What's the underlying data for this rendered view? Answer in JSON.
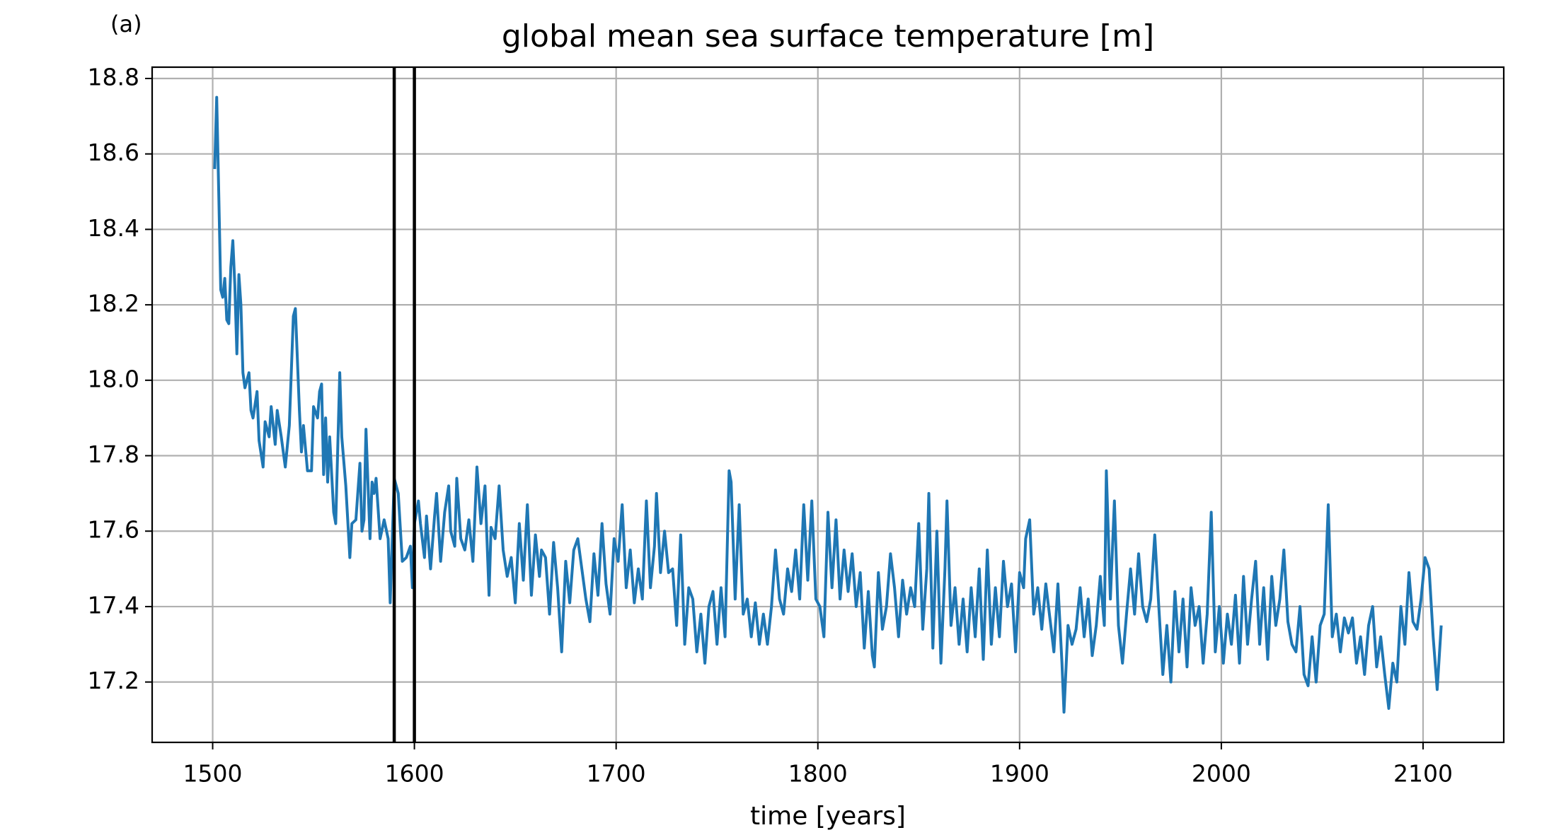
{
  "chart_data": {
    "type": "line",
    "title": "global mean sea surface temperature [m]",
    "panel_label": "(a)",
    "xlabel": "time [years]",
    "xlim": [
      1470,
      2140
    ],
    "ylim": [
      17.04,
      18.83
    ],
    "xticks": [
      1500,
      1600,
      1700,
      1800,
      1900,
      2000,
      2100
    ],
    "yticks": [
      {
        "value": 17.2,
        "label": "17.2"
      },
      {
        "value": 17.4,
        "label": "17.4"
      },
      {
        "value": 17.6,
        "label": "17.6"
      },
      {
        "value": 17.8,
        "label": "17.8"
      },
      {
        "value": 18.0,
        "label": "18.0"
      },
      {
        "value": 18.2,
        "label": "18.2"
      },
      {
        "value": 18.4,
        "label": "18.4"
      },
      {
        "value": 18.6,
        "label": "18.6"
      },
      {
        "value": 18.8,
        "label": "18.8"
      }
    ],
    "grid": true,
    "vlines": [
      1590,
      1600
    ],
    "vline_color": "#000000",
    "x": [
      1501,
      1502,
      1503,
      1504,
      1505,
      1506,
      1507,
      1508,
      1509,
      1510,
      1511,
      1512,
      1513,
      1514,
      1515,
      1516,
      1518,
      1519,
      1520,
      1522,
      1523,
      1525,
      1526,
      1528,
      1529,
      1531,
      1532,
      1534,
      1536,
      1538,
      1540,
      1541,
      1543,
      1544,
      1545,
      1547,
      1549,
      1550,
      1552,
      1553,
      1554,
      1555,
      1556,
      1557,
      1558,
      1560,
      1561,
      1563,
      1564,
      1566,
      1568,
      1569,
      1571,
      1573,
      1574,
      1575,
      1576,
      1578,
      1579,
      1580,
      1581,
      1583,
      1585,
      1587,
      1588,
      1590,
      1592,
      1594,
      1596,
      1598,
      1599,
      1600,
      1602,
      1603,
      1605,
      1606,
      1608,
      1610,
      1611,
      1613,
      1615,
      1617,
      1618,
      1620,
      1621,
      1623,
      1625,
      1627,
      1629,
      1631,
      1633,
      1635,
      1637,
      1638,
      1640,
      1642,
      1644,
      1646,
      1648,
      1650,
      1652,
      1654,
      1656,
      1658,
      1660,
      1662,
      1663,
      1665,
      1667,
      1669,
      1671,
      1673,
      1675,
      1677,
      1679,
      1681,
      1683,
      1685,
      1687,
      1689,
      1691,
      1693,
      1695,
      1697,
      1699,
      1701,
      1703,
      1705,
      1707,
      1709,
      1711,
      1713,
      1715,
      1717,
      1719,
      1720,
      1722,
      1724,
      1726,
      1728,
      1730,
      1732,
      1734,
      1736,
      1738,
      1740,
      1742,
      1744,
      1746,
      1748,
      1750,
      1752,
      1754,
      1756,
      1757,
      1759,
      1761,
      1763,
      1765,
      1767,
      1769,
      1771,
      1773,
      1775,
      1777,
      1779,
      1781,
      1783,
      1785,
      1787,
      1789,
      1791,
      1793,
      1795,
      1797,
      1799,
      1801,
      1803,
      1805,
      1807,
      1809,
      1811,
      1813,
      1815,
      1817,
      1819,
      1821,
      1823,
      1825,
      1827,
      1828,
      1830,
      1832,
      1834,
      1836,
      1838,
      1840,
      1842,
      1844,
      1846,
      1848,
      1850,
      1852,
      1854,
      1855,
      1857,
      1859,
      1861,
      1863,
      1864,
      1866,
      1868,
      1870,
      1872,
      1874,
      1876,
      1878,
      1880,
      1882,
      1884,
      1886,
      1888,
      1890,
      1892,
      1894,
      1896,
      1898,
      1900,
      1902,
      1903,
      1905,
      1907,
      1909,
      1911,
      1913,
      1915,
      1917,
      1919,
      1921,
      1922,
      1924,
      1926,
      1928,
      1930,
      1932,
      1934,
      1936,
      1938,
      1940,
      1942,
      1943,
      1945,
      1947,
      1949,
      1951,
      1953,
      1955,
      1957,
      1959,
      1961,
      1963,
      1965,
      1967,
      1969,
      1971,
      1973,
      1975,
      1977,
      1979,
      1981,
      1983,
      1985,
      1987,
      1989,
      1991,
      1993,
      1995,
      1997,
      1999,
      2001,
      2003,
      2005,
      2007,
      2009,
      2011,
      2013,
      2015,
      2017,
      2019,
      2021,
      2023,
      2025,
      2027,
      2029,
      2031,
      2033,
      2035,
      2037,
      2039,
      2041,
      2043,
      2045,
      2047,
      2049,
      2051,
      2053,
      2055,
      2057,
      2059,
      2061,
      2063,
      2065,
      2067,
      2069,
      2071,
      2073,
      2075,
      2077,
      2079,
      2081,
      2083,
      2085,
      2087,
      2089,
      2091,
      2093,
      2095,
      2097,
      2099,
      2101,
      2103,
      2105,
      2107,
      2109
    ],
    "series": [
      {
        "color": "#1f77b4",
        "values": [
          18.56,
          18.75,
          18.5,
          18.24,
          18.22,
          18.27,
          18.16,
          18.15,
          18.3,
          18.37,
          18.25,
          18.07,
          18.28,
          18.2,
          18.02,
          17.98,
          18.02,
          17.92,
          17.9,
          17.97,
          17.84,
          17.77,
          17.89,
          17.85,
          17.93,
          17.83,
          17.92,
          17.85,
          17.77,
          17.88,
          18.17,
          18.19,
          17.92,
          17.81,
          17.88,
          17.76,
          17.76,
          17.93,
          17.9,
          17.97,
          17.99,
          17.75,
          17.9,
          17.73,
          17.85,
          17.65,
          17.62,
          18.02,
          17.85,
          17.72,
          17.53,
          17.62,
          17.63,
          17.78,
          17.6,
          17.63,
          17.87,
          17.58,
          17.73,
          17.7,
          17.74,
          17.58,
          17.63,
          17.58,
          17.41,
          17.74,
          17.7,
          17.52,
          17.53,
          17.56,
          17.45,
          17.62,
          17.68,
          17.62,
          17.53,
          17.64,
          17.5,
          17.64,
          17.7,
          17.52,
          17.65,
          17.72,
          17.6,
          17.56,
          17.74,
          17.58,
          17.55,
          17.63,
          17.52,
          17.77,
          17.62,
          17.72,
          17.43,
          17.61,
          17.58,
          17.72,
          17.55,
          17.48,
          17.53,
          17.41,
          17.62,
          17.47,
          17.67,
          17.43,
          17.59,
          17.48,
          17.55,
          17.53,
          17.38,
          17.57,
          17.45,
          17.28,
          17.52,
          17.41,
          17.55,
          17.58,
          17.5,
          17.42,
          17.36,
          17.54,
          17.43,
          17.62,
          17.46,
          17.38,
          17.58,
          17.52,
          17.67,
          17.45,
          17.55,
          17.41,
          17.5,
          17.42,
          17.68,
          17.45,
          17.56,
          17.7,
          17.49,
          17.6,
          17.49,
          17.5,
          17.35,
          17.59,
          17.3,
          17.45,
          17.42,
          17.28,
          17.38,
          17.25,
          17.4,
          17.44,
          17.3,
          17.45,
          17.32,
          17.76,
          17.73,
          17.42,
          17.67,
          17.38,
          17.42,
          17.32,
          17.41,
          17.3,
          17.38,
          17.3,
          17.4,
          17.55,
          17.42,
          17.38,
          17.5,
          17.44,
          17.55,
          17.42,
          17.67,
          17.47,
          17.68,
          17.42,
          17.4,
          17.32,
          17.65,
          17.45,
          17.63,
          17.42,
          17.55,
          17.44,
          17.54,
          17.4,
          17.49,
          17.29,
          17.44,
          17.27,
          17.24,
          17.49,
          17.34,
          17.4,
          17.54,
          17.45,
          17.32,
          17.47,
          17.38,
          17.45,
          17.4,
          17.62,
          17.34,
          17.5,
          17.7,
          17.29,
          17.6,
          17.25,
          17.5,
          17.68,
          17.35,
          17.45,
          17.3,
          17.42,
          17.28,
          17.45,
          17.32,
          17.5,
          17.26,
          17.55,
          17.3,
          17.45,
          17.32,
          17.52,
          17.4,
          17.46,
          17.28,
          17.49,
          17.45,
          17.58,
          17.63,
          17.38,
          17.45,
          17.34,
          17.46,
          17.37,
          17.28,
          17.46,
          17.25,
          17.12,
          17.35,
          17.3,
          17.34,
          17.45,
          17.32,
          17.42,
          17.27,
          17.35,
          17.48,
          17.35,
          17.76,
          17.42,
          17.68,
          17.35,
          17.25,
          17.38,
          17.5,
          17.38,
          17.54,
          17.4,
          17.36,
          17.42,
          17.59,
          17.4,
          17.22,
          17.35,
          17.2,
          17.44,
          17.28,
          17.42,
          17.24,
          17.45,
          17.35,
          17.4,
          17.25,
          17.38,
          17.65,
          17.28,
          17.4,
          17.25,
          17.38,
          17.3,
          17.43,
          17.25,
          17.48,
          17.3,
          17.42,
          17.52,
          17.3,
          17.45,
          17.26,
          17.48,
          17.35,
          17.42,
          17.55,
          17.36,
          17.3,
          17.28,
          17.4,
          17.22,
          17.19,
          17.32,
          17.2,
          17.35,
          17.38,
          17.67,
          17.32,
          17.38,
          17.28,
          17.37,
          17.33,
          17.37,
          17.25,
          17.32,
          17.22,
          17.35,
          17.4,
          17.24,
          17.32,
          17.22,
          17.13,
          17.25,
          17.2,
          17.4,
          17.3,
          17.49,
          17.36,
          17.34,
          17.42,
          17.53,
          17.5,
          17.32,
          17.18,
          17.35
        ]
      }
    ]
  }
}
